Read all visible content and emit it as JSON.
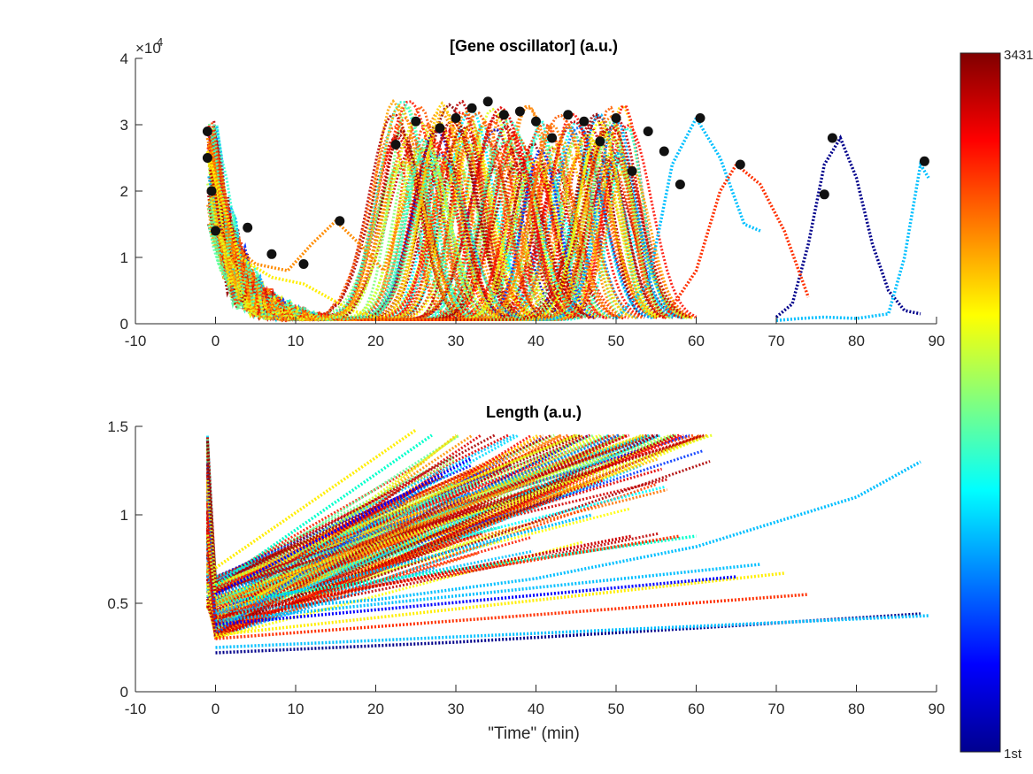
{
  "chart_data": [
    {
      "type": "line",
      "title": "[Gene oscillator] (a.u.)",
      "xlabel": "",
      "ylabel": "",
      "xlim": [
        -10,
        90
      ],
      "ylim": [
        0,
        40000
      ],
      "xticks": [
        -10,
        0,
        10,
        20,
        30,
        40,
        50,
        60,
        70,
        80,
        90
      ],
      "yticks": [
        0,
        10000,
        20000,
        30000,
        40000
      ],
      "ytick_labels": [
        "0",
        "1",
        "2",
        "3",
        "4"
      ],
      "y_exponent_label": "×10",
      "y_exponent_power": "4",
      "grid": false,
      "line_style": "dotted",
      "series": [
        {
          "color": "#00008b",
          "x": [
            70,
            72,
            74,
            76,
            78,
            80,
            82,
            84,
            86,
            88
          ],
          "y": [
            1000,
            3000,
            12000,
            24000,
            28000,
            22000,
            12000,
            5000,
            2000,
            1500
          ]
        },
        {
          "color": "#00bfff",
          "x": [
            70,
            73,
            76,
            80,
            84,
            86,
            88,
            89
          ],
          "y": [
            500,
            800,
            1000,
            800,
            1500,
            10000,
            24000,
            22000
          ]
        },
        {
          "color": "#00bfff",
          "x": [
            50,
            54,
            57,
            60,
            63,
            66,
            68
          ],
          "y": [
            800,
            6000,
            24000,
            31000,
            25000,
            15000,
            14000
          ]
        },
        {
          "color": "#ff3000",
          "x": [
            56,
            60,
            63,
            65,
            68,
            71,
            74
          ],
          "y": [
            800,
            8000,
            20000,
            24000,
            21000,
            14000,
            4000
          ]
        },
        {
          "color": "#ff8c00",
          "x": [
            -1,
            2,
            5,
            9,
            12,
            15,
            18,
            21,
            24
          ],
          "y": [
            28000,
            12000,
            9000,
            8000,
            12000,
            15500,
            12000,
            8000,
            20000
          ]
        },
        {
          "color": "#ffee00",
          "x": [
            -1,
            3,
            7,
            11,
            14,
            17,
            20
          ],
          "y": [
            26000,
            10000,
            7000,
            6000,
            4000,
            2000,
            1000
          ]
        }
      ],
      "peak_markers": {
        "color": "#111111",
        "x": [
          -1,
          -1,
          -0.5,
          0,
          4,
          7,
          11,
          15.5,
          22.5,
          25,
          28,
          30,
          32,
          34,
          36,
          38,
          40,
          42,
          44,
          46,
          48,
          50,
          52,
          54,
          56,
          58,
          60.5,
          65.5,
          76,
          77,
          88.5
        ],
        "y": [
          29000,
          25000,
          20000,
          14000,
          14500,
          10500,
          9000,
          15500,
          27000,
          30500,
          29500,
          31000,
          32500,
          33500,
          31500,
          32000,
          30500,
          28000,
          31500,
          30500,
          27500,
          31000,
          23000,
          29000,
          26000,
          21000,
          31000,
          24000,
          19500,
          28000,
          24500
        ]
      }
    },
    {
      "type": "line",
      "title": "Length (a.u.)",
      "xlabel": "\"Time\" (min)",
      "ylabel": "",
      "xlim": [
        -10,
        90
      ],
      "ylim": [
        0,
        1.5
      ],
      "xticks": [
        -10,
        0,
        10,
        20,
        30,
        40,
        50,
        60,
        70,
        80,
        90
      ],
      "yticks": [
        0,
        0.5,
        1,
        1.5
      ],
      "ytick_labels": [
        "0",
        "0.5",
        "1",
        "1.5"
      ],
      "grid": false,
      "line_style": "dotted",
      "series": [
        {
          "color": "#00bfff",
          "x": [
            0,
            20,
            40,
            60,
            80,
            88
          ],
          "y": [
            0.45,
            0.52,
            0.64,
            0.82,
            1.1,
            1.3
          ]
        },
        {
          "color": "#00008b",
          "x": [
            0,
            30,
            60,
            88
          ],
          "y": [
            0.22,
            0.28,
            0.36,
            0.44
          ]
        },
        {
          "color": "#00bfff",
          "x": [
            0,
            30,
            60,
            89
          ],
          "y": [
            0.25,
            0.31,
            0.37,
            0.43
          ]
        },
        {
          "color": "#ff3000",
          "x": [
            0,
            74
          ],
          "y": [
            0.3,
            0.55
          ]
        },
        {
          "color": "#ffee00",
          "x": [
            0,
            71
          ],
          "y": [
            0.32,
            0.67
          ]
        },
        {
          "color": "#00bfff",
          "x": [
            0,
            68
          ],
          "y": [
            0.4,
            0.72
          ]
        },
        {
          "color": "#0000ff",
          "x": [
            0,
            65
          ],
          "y": [
            0.38,
            0.65
          ]
        },
        {
          "color": "#00ffcc",
          "x": [
            0,
            60
          ],
          "y": [
            0.5,
            0.88
          ]
        },
        {
          "color": "#ff3000",
          "x": [
            0,
            58
          ],
          "y": [
            0.45,
            0.88
          ]
        },
        {
          "color": "#ffee00",
          "x": [
            0,
            25
          ],
          "y": [
            0.7,
            1.48
          ]
        },
        {
          "color": "#00ffcc",
          "x": [
            0,
            27
          ],
          "y": [
            0.6,
            1.45
          ]
        },
        {
          "color": "#0000ff",
          "x": [
            0,
            32
          ],
          "y": [
            0.55,
            1.32
          ]
        },
        {
          "color": "#ff8c00",
          "x": [
            0,
            40
          ],
          "y": [
            0.5,
            1.2
          ]
        },
        {
          "color": "#00bfff",
          "x": [
            0,
            47
          ],
          "y": [
            0.45,
            1.0
          ]
        },
        {
          "color": "#cc0000",
          "x": [
            0,
            52
          ],
          "y": [
            0.42,
            0.88
          ]
        }
      ]
    }
  ],
  "colorbar": {
    "top_label": "3431",
    "bottom_label": "1st",
    "colormap": "jet"
  }
}
